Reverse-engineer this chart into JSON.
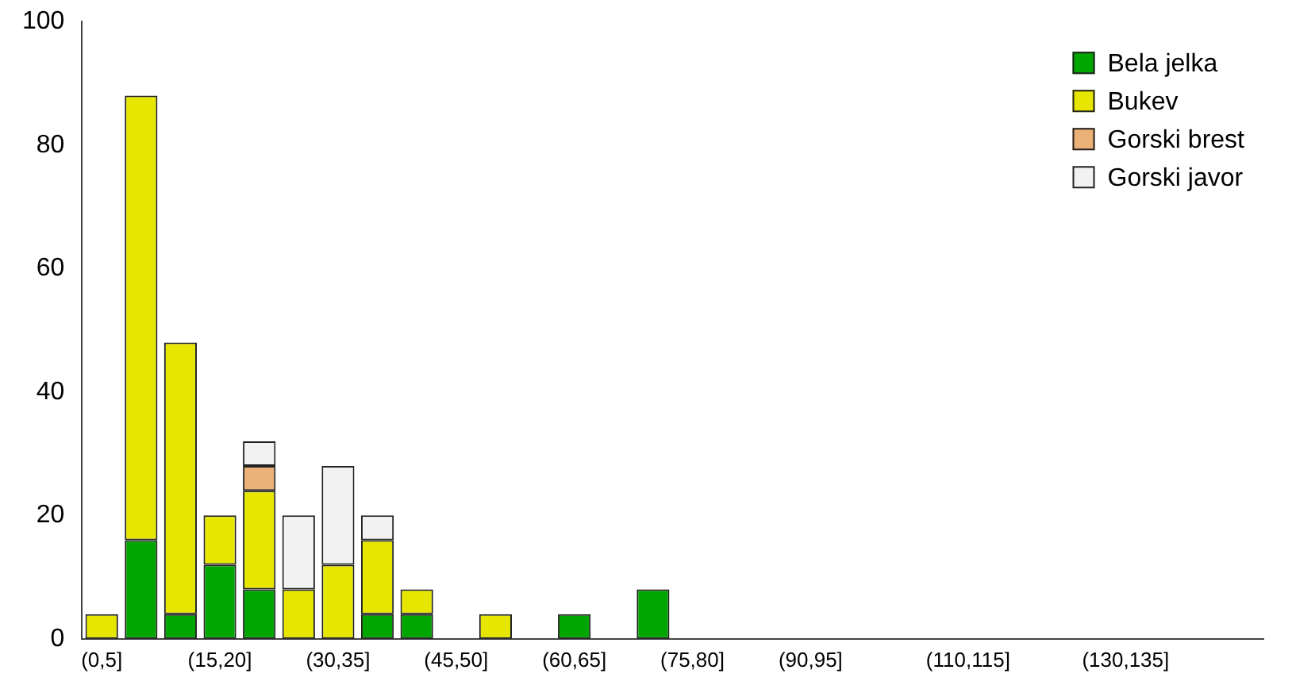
{
  "chart_data": {
    "type": "bar",
    "stacked": true,
    "categories": [
      "(0,5]",
      null,
      null,
      "(15,20]",
      null,
      null,
      "(30,35]",
      null,
      null,
      "(45,50]",
      null,
      null,
      "(60,65]",
      null,
      null,
      "(75,80]",
      null,
      null,
      "(90,95]",
      null,
      null,
      null,
      "(110,115]",
      null,
      null,
      null,
      "(130,135]",
      null,
      null,
      null
    ],
    "series": [
      {
        "name": "Bela jelka",
        "color": "#00a600",
        "values": [
          0,
          16,
          4,
          12,
          8,
          0,
          0,
          4,
          4,
          0,
          0,
          0,
          4,
          0,
          8,
          0,
          0,
          0,
          0,
          0,
          0,
          0,
          0,
          0,
          0,
          0,
          0,
          0,
          0,
          0
        ]
      },
      {
        "name": "Bukev",
        "color": "#e6e600",
        "values": [
          4,
          72,
          44,
          8,
          16,
          8,
          12,
          12,
          4,
          0,
          4,
          0,
          0,
          0,
          0,
          0,
          0,
          0,
          0,
          0,
          0,
          0,
          0,
          0,
          0,
          0,
          0,
          0,
          0,
          0
        ]
      },
      {
        "name": "Gorski brest",
        "color": "#ecb176",
        "values": [
          0,
          0,
          0,
          0,
          4,
          0,
          0,
          0,
          0,
          0,
          0,
          0,
          0,
          0,
          0,
          0,
          0,
          0,
          0,
          0,
          0,
          0,
          0,
          0,
          0,
          0,
          0,
          0,
          0,
          0
        ]
      },
      {
        "name": "Gorski javor",
        "color": "#f2f2f2",
        "values": [
          0,
          0,
          0,
          0,
          4,
          12,
          16,
          4,
          0,
          0,
          0,
          0,
          0,
          0,
          0,
          0,
          0,
          0,
          0,
          0,
          0,
          0,
          0,
          0,
          0,
          0,
          0,
          0,
          0,
          0
        ]
      }
    ],
    "ylim": [
      0,
      100
    ],
    "yticks": [
      0,
      20,
      40,
      60,
      80,
      100
    ],
    "grid": false,
    "legend": "top right"
  }
}
